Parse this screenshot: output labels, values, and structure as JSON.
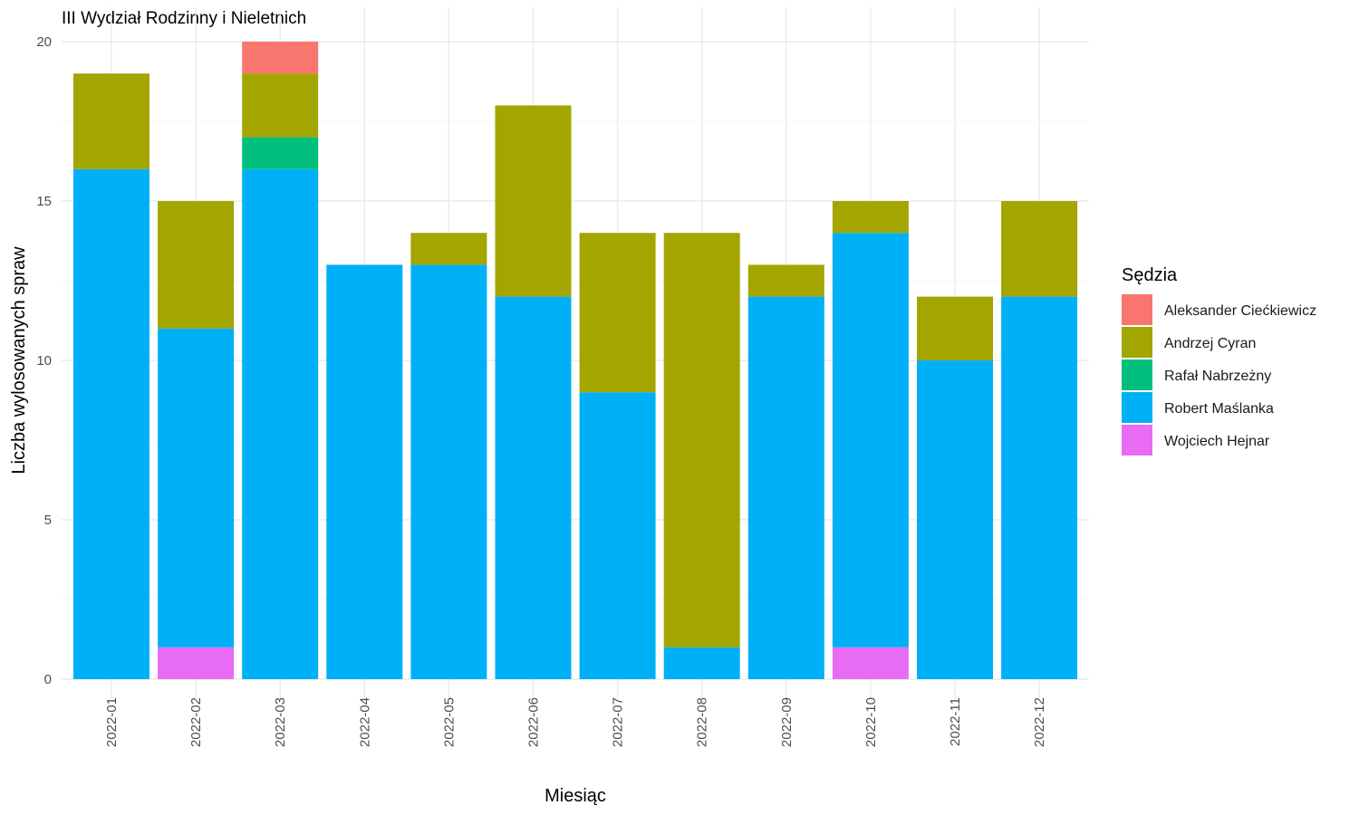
{
  "chart_data": {
    "type": "bar",
    "stacked": true,
    "title": "III Wydział Rodzinny i Nieletnich",
    "xlabel": "Miesiąc",
    "ylabel": "Liczba wylosowanych spraw",
    "ylim": [
      0,
      20
    ],
    "yticks": [
      0,
      5,
      10,
      15,
      20
    ],
    "grid": true,
    "legend": {
      "title": "Sędzia",
      "position": "right"
    },
    "categories": [
      "2022-01",
      "2022-02",
      "2022-03",
      "2022-04",
      "2022-05",
      "2022-06",
      "2022-07",
      "2022-08",
      "2022-09",
      "2022-10",
      "2022-11",
      "2022-12"
    ],
    "series": [
      {
        "name": "Wojciech Hejnar",
        "color": "#E76BF3",
        "values": [
          0,
          1,
          0,
          0,
          0,
          0,
          0,
          0,
          0,
          1,
          0,
          0
        ]
      },
      {
        "name": "Robert Maślanka",
        "color": "#00B0F6",
        "values": [
          16,
          10,
          16,
          13,
          13,
          12,
          9,
          1,
          12,
          13,
          10,
          12
        ]
      },
      {
        "name": "Rafał Nabrzeżny",
        "color": "#00BF7D",
        "values": [
          0,
          0,
          1,
          0,
          0,
          0,
          0,
          0,
          0,
          0,
          0,
          0
        ]
      },
      {
        "name": "Andrzej Cyran",
        "color": "#A3A500",
        "values": [
          3,
          4,
          2,
          0,
          1,
          6,
          5,
          13,
          1,
          1,
          2,
          3
        ]
      },
      {
        "name": "Aleksander Ciećkiewicz",
        "color": "#F8766D",
        "values": [
          0,
          0,
          1,
          0,
          0,
          0,
          0,
          0,
          0,
          0,
          0,
          0
        ]
      }
    ],
    "legend_order": [
      "Aleksander Ciećkiewicz",
      "Andrzej Cyran",
      "Rafał Nabrzeżny",
      "Robert Maślanka",
      "Wojciech Hejnar"
    ]
  }
}
